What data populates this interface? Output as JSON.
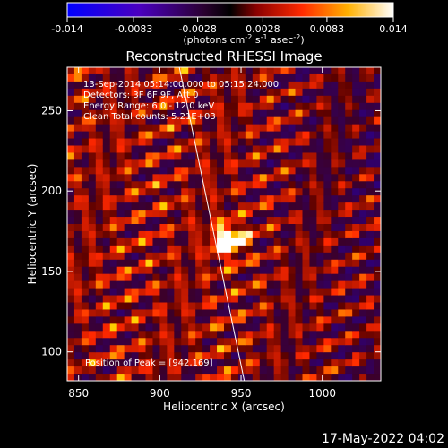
{
  "colorbar": {
    "ticks": [
      "-0.014",
      "-0.0083",
      "-0.0028",
      "0.0028",
      "0.0083",
      "0.014"
    ],
    "unit_label_parts": [
      "(photons cm",
      "-2",
      " s",
      "-1",
      " asec",
      "-2",
      ")"
    ],
    "range": [
      -0.014,
      0.014
    ]
  },
  "info_lines": [
    "13-Sep-2014 05:14:00.000 to 05:15:24.000",
    "Detectors: 3F 6F 9F, Att 0",
    "Energy Range: 6.0 - 12.0 keV",
    "Clean     Total counts: 5.21E+03"
  ],
  "peak_label": "Position of Peak = [942,169]",
  "footer": "17-May-2022 04:02",
  "chart_data": {
    "type": "heatmap",
    "title": "Reconstructed RHESSI Image",
    "xlabel": "Heliocentric X (arcsec)",
    "ylabel": "Heliocentric Y (arcsec)",
    "xlim": [
      843,
      1036
    ],
    "ylim": [
      82,
      277
    ],
    "xticks": [
      850,
      900,
      950,
      1000
    ],
    "yticks": [
      100,
      150,
      200,
      250
    ],
    "peak": [
      942,
      169
    ],
    "limb_line": [
      [
        912,
        277
      ],
      [
        952,
        82
      ]
    ],
    "colormap": "rainbow-hot (blue-purple-black-red-yellow-white)"
  }
}
